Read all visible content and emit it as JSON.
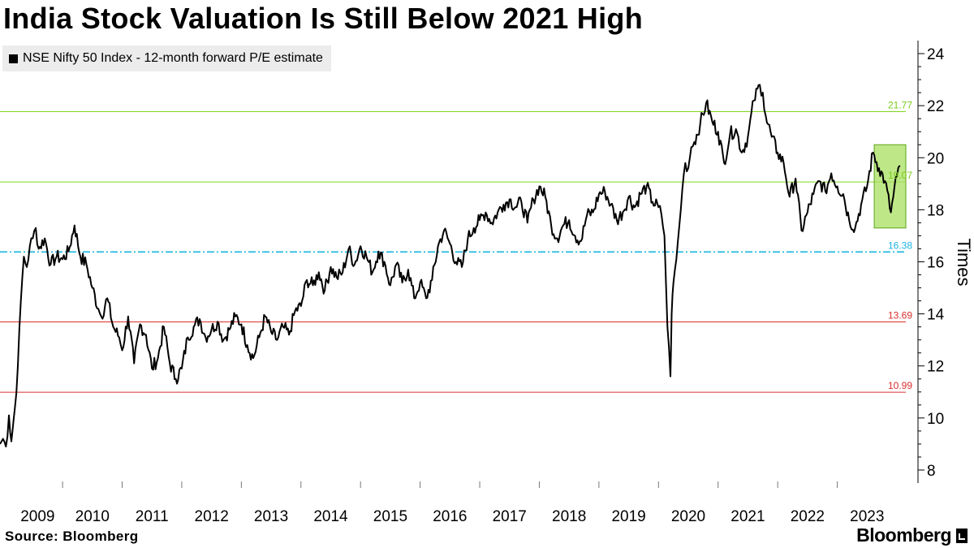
{
  "title": "India Stock Valuation Is Still Below 2021 High",
  "legend": {
    "label": "NSE Nifty 50 Index - 12-month forward P/E estimate"
  },
  "footer": {
    "source": "Source: Bloomberg",
    "brand": "Bloomberg"
  },
  "colors": {
    "series": "#000000",
    "green_line": "#7fd71e",
    "green_label": "#7acb1a",
    "red_line": "#d9302e",
    "red_label": "#d9302e",
    "blue_line": "#1ab4e0",
    "highlight_fill": "#a8e05f",
    "highlight_stroke": "#5da31a",
    "axis": "#000000",
    "grid_tick_label": "#000000"
  },
  "chart_data": {
    "type": "line",
    "title": "India Stock Valuation Is Still Below 2021 High",
    "xlabel": "",
    "ylabel": "Times",
    "xlim": [
      2008.95,
      2024.15
    ],
    "ylim": [
      7.5,
      24.5
    ],
    "y_ticks": [
      8,
      10,
      12,
      14,
      16,
      18,
      20,
      22,
      24
    ],
    "x_tick_labels": [
      {
        "label": "2009",
        "value": 2009
      },
      {
        "label": "2010",
        "value": 2010
      },
      {
        "label": "2011",
        "value": 2011
      },
      {
        "label": "2012",
        "value": 2012
      },
      {
        "label": "2013",
        "value": 2013
      },
      {
        "label": "2014",
        "value": 2014
      },
      {
        "label": "2015",
        "value": 2015
      },
      {
        "label": "2016",
        "value": 2016
      },
      {
        "label": "2017",
        "value": 2017
      },
      {
        "label": "2018",
        "value": 2018
      },
      {
        "label": "2019",
        "value": 2019
      },
      {
        "label": "2020",
        "value": 2020
      },
      {
        "label": "2021",
        "value": 2021
      },
      {
        "label": "2022",
        "value": 2022
      },
      {
        "label": "2023",
        "value": 2023
      }
    ],
    "reference_lines": [
      {
        "name": "upper-green-line",
        "value": 21.77,
        "label": "21.77",
        "color": "#7fd71e",
        "label_color": "#7acb1a",
        "style": "solid"
      },
      {
        "name": "mid-green-line",
        "value": 19.07,
        "label": "19.07",
        "color": "#7fd71e",
        "label_color": "#7acb1a",
        "style": "solid"
      },
      {
        "name": "mean-blue-line",
        "value": 16.38,
        "label": "16.38",
        "color": "#1ab4e0",
        "label_color": "#1ab4e0",
        "style": "dashdot"
      },
      {
        "name": "upper-red-line",
        "value": 13.69,
        "label": "13.69",
        "color": "#d9302e",
        "label_color": "#d9302e",
        "style": "solid"
      },
      {
        "name": "lower-red-line",
        "value": 10.99,
        "label": "10.99",
        "color": "#d9302e",
        "label_color": "#d9302e",
        "style": "solid"
      }
    ],
    "highlight": {
      "x_range": [
        2023.62,
        2024.15
      ],
      "y_range": [
        17.3,
        20.5
      ]
    },
    "series": [
      {
        "name": "NSE Nifty 50 Index - 12-month forward P/E estimate",
        "x": [
          2008.95,
          2009.0,
          2009.05,
          2009.1,
          2009.14,
          2009.2,
          2009.25,
          2009.3,
          2009.35,
          2009.4,
          2009.45,
          2009.5,
          2009.55,
          2009.6,
          2009.7,
          2009.8,
          2009.9,
          2010.0,
          2010.1,
          2010.2,
          2010.3,
          2010.4,
          2010.5,
          2010.6,
          2010.65,
          2010.75,
          2010.85,
          2010.95,
          2011.0,
          2011.1,
          2011.2,
          2011.3,
          2011.4,
          2011.5,
          2011.6,
          2011.7,
          2011.8,
          2011.9,
          2012.0,
          2012.1,
          2012.2,
          2012.3,
          2012.4,
          2012.5,
          2012.6,
          2012.7,
          2012.8,
          2012.9,
          2013.0,
          2013.1,
          2013.2,
          2013.3,
          2013.4,
          2013.5,
          2013.6,
          2013.7,
          2013.8,
          2013.9,
          2014.0,
          2014.1,
          2014.2,
          2014.3,
          2014.4,
          2014.5,
          2014.6,
          2014.7,
          2014.8,
          2014.9,
          2015.0,
          2015.1,
          2015.2,
          2015.3,
          2015.4,
          2015.5,
          2015.6,
          2015.7,
          2015.8,
          2015.9,
          2016.0,
          2016.1,
          2016.2,
          2016.3,
          2016.4,
          2016.5,
          2016.6,
          2016.7,
          2016.8,
          2016.9,
          2017.0,
          2017.1,
          2017.2,
          2017.3,
          2017.4,
          2017.5,
          2017.6,
          2017.7,
          2017.8,
          2017.9,
          2018.0,
          2018.1,
          2018.2,
          2018.3,
          2018.4,
          2018.5,
          2018.6,
          2018.7,
          2018.8,
          2018.9,
          2019.0,
          2019.1,
          2019.2,
          2019.3,
          2019.4,
          2019.5,
          2019.6,
          2019.7,
          2019.8,
          2019.9,
          2020.0,
          2020.05,
          2020.1,
          2020.15,
          2020.2,
          2020.22,
          2020.25,
          2020.3,
          2020.35,
          2020.4,
          2020.45,
          2020.5,
          2020.55,
          2020.6,
          2020.7,
          2020.8,
          2020.9,
          2021.0,
          2021.1,
          2021.2,
          2021.3,
          2021.4,
          2021.5,
          2021.6,
          2021.7,
          2021.75,
          2021.8,
          2021.9,
          2022.0,
          2022.1,
          2022.2,
          2022.3,
          2022.4,
          2022.5,
          2022.6,
          2022.7,
          2022.8,
          2022.9,
          2023.0,
          2023.1,
          2023.2,
          2023.3,
          2023.4,
          2023.5,
          2023.6,
          2023.7,
          2023.8,
          2023.9,
          2024.0,
          2024.05
        ],
        "values": [
          9.0,
          9.2,
          8.9,
          10.1,
          9.1,
          10.4,
          12.0,
          14.5,
          16.2,
          15.8,
          16.6,
          16.9,
          17.3,
          16.5,
          16.9,
          15.9,
          16.2,
          16.1,
          16.4,
          17.4,
          16.2,
          15.9,
          15.0,
          14.2,
          13.9,
          14.6,
          13.5,
          13.1,
          12.6,
          13.9,
          12.1,
          13.6,
          13.2,
          11.9,
          12.3,
          13.5,
          12.1,
          11.5,
          11.9,
          13.1,
          13.5,
          13.8,
          13.1,
          13.4,
          13.7,
          13.0,
          13.4,
          13.9,
          13.6,
          12.8,
          12.3,
          13.1,
          13.9,
          13.3,
          13.0,
          13.5,
          13.2,
          14.1,
          14.3,
          15.3,
          15.1,
          15.6,
          14.9,
          15.8,
          15.4,
          15.6,
          16.5,
          15.9,
          16.6,
          16.2,
          15.6,
          16.4,
          16.0,
          15.1,
          15.9,
          15.2,
          15.7,
          14.6,
          15.2,
          14.6,
          15.3,
          16.6,
          17.2,
          16.7,
          16.0,
          15.8,
          16.9,
          17.3,
          17.6,
          17.9,
          17.5,
          17.9,
          18.2,
          18.4,
          18.1,
          18.3,
          17.5,
          18.4,
          18.9,
          18.5,
          17.4,
          16.9,
          17.4,
          17.6,
          17.0,
          16.8,
          17.8,
          17.9,
          18.6,
          18.7,
          18.2,
          17.6,
          17.9,
          18.5,
          18.1,
          18.6,
          18.9,
          18.3,
          18.1,
          17.8,
          17.0,
          13.5,
          11.6,
          14.0,
          15.2,
          16.1,
          17.4,
          18.8,
          19.8,
          19.6,
          20.4,
          20.6,
          21.3,
          22.1,
          21.4,
          21.0,
          19.8,
          20.9,
          21.1,
          20.2,
          20.8,
          22.2,
          22.8,
          22.5,
          21.6,
          20.8,
          20.2,
          19.8,
          18.5,
          19.2,
          17.2,
          17.9,
          18.6,
          19.1,
          18.7,
          19.4,
          18.9,
          18.6,
          17.6,
          17.3,
          18.2,
          18.9,
          20.2,
          19.6,
          19.1,
          17.9,
          19.3,
          19.7
        ]
      }
    ]
  }
}
